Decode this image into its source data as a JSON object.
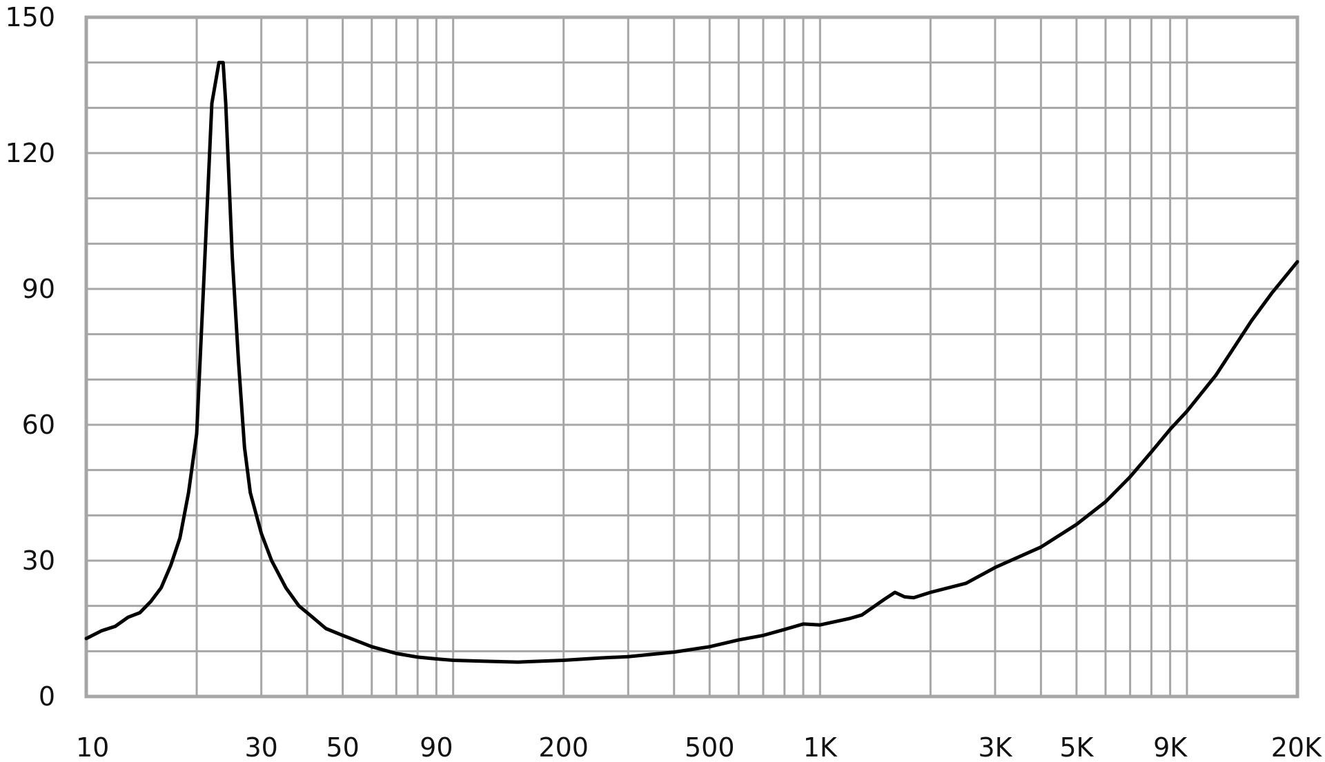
{
  "chart_data": {
    "type": "line",
    "title": "",
    "xlabel": "",
    "ylabel": "",
    "x_scale": "log",
    "xlim": [
      10,
      20000
    ],
    "ylim": [
      0,
      150
    ],
    "grid": true,
    "legend": "none",
    "x_ticks": [
      {
        "value": 10,
        "label": "10"
      },
      {
        "value": 30,
        "label": "30"
      },
      {
        "value": 50,
        "label": "50"
      },
      {
        "value": 90,
        "label": "90"
      },
      {
        "value": 200,
        "label": "200"
      },
      {
        "value": 500,
        "label": "500"
      },
      {
        "value": 1000,
        "label": "1K"
      },
      {
        "value": 3000,
        "label": "3K"
      },
      {
        "value": 5000,
        "label": "5K"
      },
      {
        "value": 9000,
        "label": "9K"
      },
      {
        "value": 20000,
        "label": "20K"
      }
    ],
    "y_ticks": [
      {
        "value": 0,
        "label": "0"
      },
      {
        "value": 30,
        "label": "30"
      },
      {
        "value": 60,
        "label": "60"
      },
      {
        "value": 90,
        "label": "90"
      },
      {
        "value": 120,
        "label": "120"
      },
      {
        "value": 150,
        "label": "150"
      }
    ],
    "x_minor_grid": [
      10,
      20,
      30,
      40,
      50,
      60,
      70,
      80,
      90,
      100,
      200,
      300,
      400,
      500,
      600,
      700,
      800,
      900,
      1000,
      2000,
      3000,
      4000,
      5000,
      6000,
      7000,
      8000,
      9000,
      10000,
      20000
    ],
    "y_minor_grid": [
      0,
      10,
      20,
      30,
      40,
      50,
      60,
      70,
      80,
      90,
      100,
      110,
      120,
      130,
      140,
      150
    ],
    "series": [
      {
        "color": "#000000",
        "points": [
          [
            10,
            12.8
          ],
          [
            11,
            14.5
          ],
          [
            12,
            15.5
          ],
          [
            13,
            17.5
          ],
          [
            14,
            18.5
          ],
          [
            15,
            21
          ],
          [
            16,
            24
          ],
          [
            17,
            29
          ],
          [
            18,
            35
          ],
          [
            19,
            45
          ],
          [
            20,
            58
          ],
          [
            21,
            95
          ],
          [
            22,
            131
          ],
          [
            23,
            140
          ],
          [
            23.6,
            140
          ],
          [
            24,
            131
          ],
          [
            25,
            97
          ],
          [
            26,
            74
          ],
          [
            27,
            55
          ],
          [
            28,
            45
          ],
          [
            30,
            36
          ],
          [
            32,
            30
          ],
          [
            35,
            24
          ],
          [
            38,
            20
          ],
          [
            40,
            18.5
          ],
          [
            45,
            15
          ],
          [
            50,
            13.5
          ],
          [
            60,
            11
          ],
          [
            70,
            9.5
          ],
          [
            80,
            8.7
          ],
          [
            90,
            8.3
          ],
          [
            100,
            8
          ],
          [
            120,
            7.8
          ],
          [
            150,
            7.6
          ],
          [
            200,
            8
          ],
          [
            250,
            8.5
          ],
          [
            300,
            8.8
          ],
          [
            400,
            9.8
          ],
          [
            500,
            11
          ],
          [
            600,
            12.5
          ],
          [
            700,
            13.5
          ],
          [
            800,
            14.8
          ],
          [
            900,
            16
          ],
          [
            1000,
            15.8
          ],
          [
            1200,
            17.2
          ],
          [
            1300,
            18
          ],
          [
            1500,
            21.5
          ],
          [
            1600,
            23
          ],
          [
            1700,
            22
          ],
          [
            1800,
            21.8
          ],
          [
            2000,
            23
          ],
          [
            2500,
            25
          ],
          [
            3000,
            28.5
          ],
          [
            4000,
            33
          ],
          [
            5000,
            38
          ],
          [
            6000,
            43
          ],
          [
            7000,
            48.5
          ],
          [
            8000,
            54
          ],
          [
            9000,
            59
          ],
          [
            10000,
            63
          ],
          [
            12000,
            71
          ],
          [
            15000,
            83
          ],
          [
            17000,
            89
          ],
          [
            20000,
            96
          ]
        ]
      }
    ]
  }
}
